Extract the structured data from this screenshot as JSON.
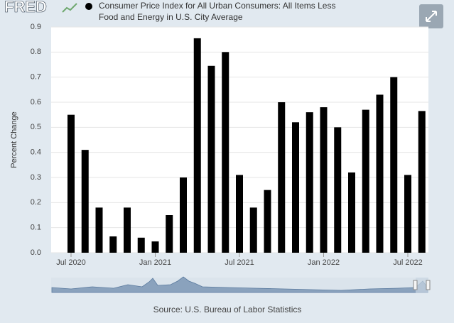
{
  "logo": "FRED",
  "source": "Source: U.S. Bureau of Labor Statistics",
  "chart_data": {
    "type": "bar",
    "title_lines": [
      "Consumer Price Index for All Urban Consumers: All Items Less",
      "Food and Energy in U.S. City Average"
    ],
    "y_label": "Percent Change",
    "categories": [
      "Jul 2020",
      null,
      null,
      null,
      null,
      null,
      "Jan 2021",
      null,
      null,
      null,
      null,
      null,
      "Jul 2021",
      null,
      null,
      null,
      null,
      null,
      "Jan 2022",
      null,
      null,
      null,
      null,
      null,
      "Jul 2022",
      null
    ],
    "values": [
      0.55,
      0.41,
      0.18,
      0.065,
      0.18,
      0.06,
      0.045,
      0.15,
      0.3,
      0.855,
      0.745,
      0.8,
      0.31,
      0.18,
      0.25,
      0.6,
      0.52,
      0.56,
      0.58,
      0.5,
      0.32,
      0.57,
      0.63,
      0.7,
      0.31,
      0.565
    ],
    "color": "#000000",
    "ylim": [
      0,
      0.9
    ],
    "yticks": [
      {
        "value": 0,
        "label": "0.0"
      },
      0.1,
      0.2,
      0.3,
      0.4,
      0.5,
      0.6,
      0.7,
      0.8,
      0.9
    ],
    "grid": true
  }
}
